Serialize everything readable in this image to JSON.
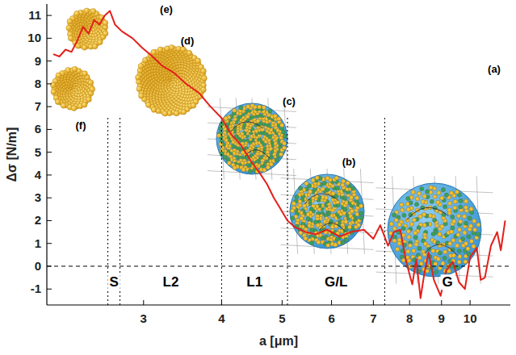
{
  "chart_data": {
    "type": "line",
    "log": "x",
    "grid": false,
    "x_label": "a [μm]",
    "y_label": "Δσ [N/m]",
    "xlim": [
      2.1,
      11.6
    ],
    "xticks": [
      3,
      4,
      5,
      6,
      7,
      8,
      9,
      10
    ],
    "ylim": [
      -1.7,
      11.5
    ],
    "yticks": [
      -1,
      0,
      1,
      2,
      3,
      4,
      5,
      6,
      7,
      8,
      9,
      10,
      11
    ],
    "zero_line": 0,
    "regions": [
      {
        "label": "S",
        "from": 2.63,
        "to": 2.75
      },
      {
        "label": "L2",
        "from": 2.75,
        "to": 4.0
      },
      {
        "label": "L1",
        "from": 4.0,
        "to": 5.1
      },
      {
        "label": "G/L",
        "from": 5.1,
        "to": 7.3
      },
      {
        "label": "G",
        "from": 7.3,
        "to": 11.6
      }
    ],
    "annotations": [
      "(a)",
      "(b)",
      "(c)",
      "(d)",
      "(e)",
      "(f)"
    ],
    "x": [
      2.15,
      2.2,
      2.25,
      2.3,
      2.35,
      2.4,
      2.45,
      2.5,
      2.55,
      2.6,
      2.65,
      2.7,
      2.77,
      2.88,
      2.98,
      3.1,
      3.21,
      3.35,
      3.51,
      3.68,
      3.84,
      4.0,
      4.14,
      4.3,
      4.46,
      4.6,
      4.73,
      4.85,
      4.95,
      5.1,
      5.25,
      5.45,
      5.66,
      5.9,
      6.18,
      6.45,
      6.76,
      7.0,
      7.18,
      7.39,
      7.55,
      7.73,
      7.9,
      8.08,
      8.2,
      8.33,
      8.45,
      8.58,
      8.75,
      8.97,
      9.15,
      9.38,
      9.6,
      9.81,
      10.0,
      10.25,
      10.4,
      10.56,
      10.8,
      11.05,
      11.2,
      11.38
    ],
    "series": [
      {
        "name": "Δσ",
        "color": "#e3201b",
        "line_style": "solid",
        "values": [
          9.3,
          9.2,
          9.5,
          9.4,
          9.9,
          10.5,
          10.2,
          10.8,
          10.6,
          11.0,
          11.2,
          10.6,
          10.3,
          10.0,
          9.6,
          9.2,
          8.8,
          8.5,
          8.0,
          7.6,
          7.0,
          6.5,
          5.8,
          5.3,
          4.6,
          4.1,
          3.6,
          3.0,
          2.6,
          2.0,
          1.7,
          1.5,
          1.4,
          1.6,
          1.3,
          1.5,
          1.6,
          1.2,
          1.8,
          0.9,
          1.5,
          1.6,
          0.2,
          -0.8,
          0.3,
          -1.4,
          -0.3,
          0.6,
          -0.6,
          -1.3,
          -0.2,
          0.2,
          -0.7,
          -1.0,
          0.4,
          0.8,
          -0.6,
          -0.5,
          0.9,
          1.5,
          0.7,
          2.0
        ]
      }
    ]
  }
}
